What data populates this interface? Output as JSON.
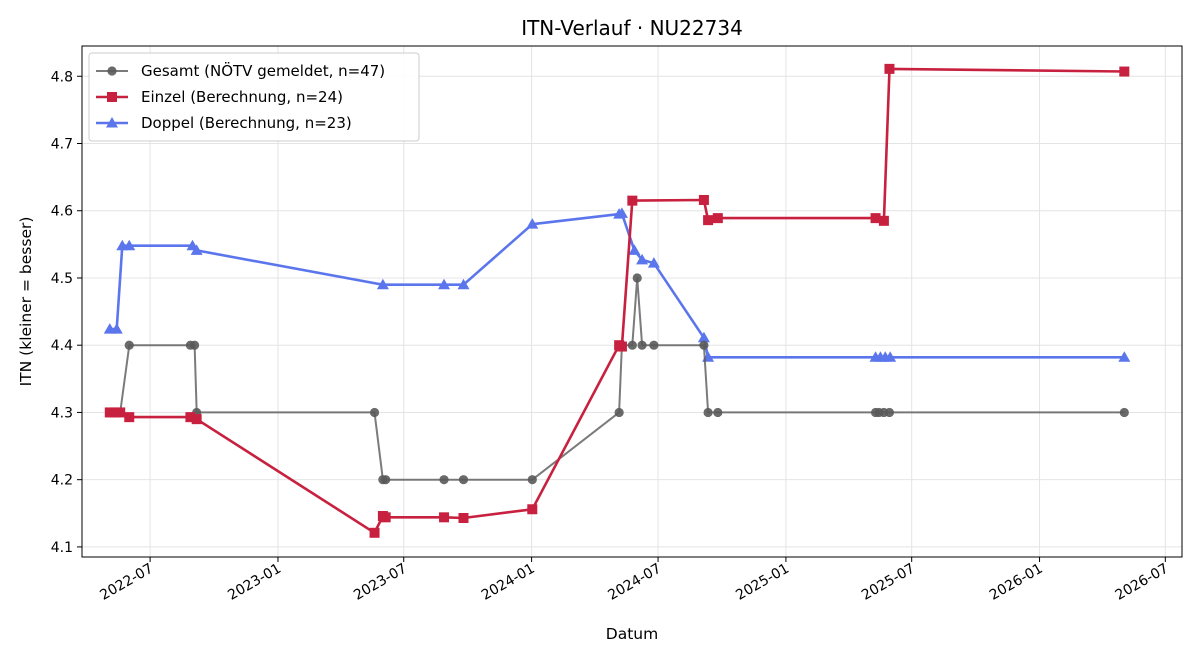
{
  "chart_data": {
    "type": "line",
    "title": "ITN-Verlauf · NU22734",
    "xlabel": "Datum",
    "ylabel": "ITN  (kleiner = besser)",
    "ylim": [
      4.085,
      4.845
    ],
    "xlim": [
      "2022-03-25",
      "2026-07-25"
    ],
    "grid": true,
    "legend_position": "top-left",
    "x_ticks": [
      "2022-07",
      "2023-01",
      "2023-07",
      "2024-01",
      "2024-07",
      "2025-01",
      "2025-07",
      "2026-01",
      "2026-07"
    ],
    "y_ticks": [
      "4.1",
      "4.2",
      "4.3",
      "4.4",
      "4.5",
      "4.6",
      "4.7",
      "4.8"
    ],
    "series": [
      {
        "name": "Gesamt (NÖTV gemeldet, n=47)",
        "color": "#5a5a5a",
        "marker": "circle",
        "points": [
          [
            "2022-05-04",
            4.3
          ],
          [
            "2022-05-09",
            4.3
          ],
          [
            "2022-05-14",
            4.3
          ],
          [
            "2022-05-19",
            4.3
          ],
          [
            "2022-06-01",
            4.4
          ],
          [
            "2022-08-28",
            4.4
          ],
          [
            "2022-09-03",
            4.4
          ],
          [
            "2022-09-06",
            4.3
          ],
          [
            "2023-05-20",
            4.3
          ],
          [
            "2023-06-01",
            4.2
          ],
          [
            "2023-06-05",
            4.2
          ],
          [
            "2023-08-28",
            4.2
          ],
          [
            "2023-09-25",
            4.2
          ],
          [
            "2024-01-02",
            4.2
          ],
          [
            "2024-05-06",
            4.3
          ],
          [
            "2024-05-10",
            4.4
          ],
          [
            "2024-05-25",
            4.4
          ],
          [
            "2024-06-01",
            4.5
          ],
          [
            "2024-06-08",
            4.4
          ],
          [
            "2024-06-25",
            4.4
          ],
          [
            "2024-09-05",
            4.4
          ],
          [
            "2024-09-11",
            4.3
          ],
          [
            "2024-09-25",
            4.3
          ],
          [
            "2025-05-10",
            4.3
          ],
          [
            "2025-05-15",
            4.3
          ],
          [
            "2025-05-22",
            4.3
          ],
          [
            "2025-05-30",
            4.3
          ],
          [
            "2026-05-03",
            4.3
          ]
        ]
      },
      {
        "name": "Einzel (Berechnung, n=24)",
        "color": "#c8203f",
        "marker": "square",
        "points": [
          [
            "2022-05-04",
            4.3
          ],
          [
            "2022-05-11",
            4.3
          ],
          [
            "2022-05-19",
            4.3
          ],
          [
            "2022-06-01",
            4.293
          ],
          [
            "2022-08-28",
            4.293
          ],
          [
            "2022-09-06",
            4.29
          ],
          [
            "2023-05-20",
            4.121
          ],
          [
            "2023-06-01",
            4.146
          ],
          [
            "2023-06-05",
            4.144
          ],
          [
            "2023-08-28",
            4.144
          ],
          [
            "2023-09-25",
            4.143
          ],
          [
            "2024-01-02",
            4.156
          ],
          [
            "2024-05-06",
            4.4
          ],
          [
            "2024-05-10",
            4.398
          ],
          [
            "2024-05-25",
            4.615
          ],
          [
            "2024-09-05",
            4.616
          ],
          [
            "2024-09-11",
            4.586
          ],
          [
            "2024-09-25",
            4.589
          ],
          [
            "2025-05-10",
            4.589
          ],
          [
            "2025-05-22",
            4.585
          ],
          [
            "2025-05-30",
            4.811
          ],
          [
            "2026-05-03",
            4.807
          ]
        ]
      },
      {
        "name": "Doppel (Berechnung, n=23)",
        "color": "#5b76ec",
        "marker": "triangle",
        "points": [
          [
            "2022-05-04",
            4.424
          ],
          [
            "2022-05-14",
            4.424
          ],
          [
            "2022-05-22",
            4.548
          ],
          [
            "2022-06-01",
            4.548
          ],
          [
            "2022-08-31",
            4.548
          ],
          [
            "2022-09-06",
            4.541
          ],
          [
            "2023-06-01",
            4.49
          ],
          [
            "2023-08-28",
            4.49
          ],
          [
            "2023-09-25",
            4.49
          ],
          [
            "2024-01-02",
            4.58
          ],
          [
            "2024-05-06",
            4.595
          ],
          [
            "2024-05-10",
            4.596
          ],
          [
            "2024-05-28",
            4.541
          ],
          [
            "2024-06-08",
            4.527
          ],
          [
            "2024-06-25",
            4.522
          ],
          [
            "2024-09-05",
            4.411
          ],
          [
            "2024-09-11",
            4.382
          ],
          [
            "2025-05-10",
            4.382
          ],
          [
            "2025-05-17",
            4.382
          ],
          [
            "2025-05-24",
            4.382
          ],
          [
            "2025-05-31",
            4.382
          ],
          [
            "2026-05-03",
            4.382
          ]
        ]
      }
    ]
  }
}
